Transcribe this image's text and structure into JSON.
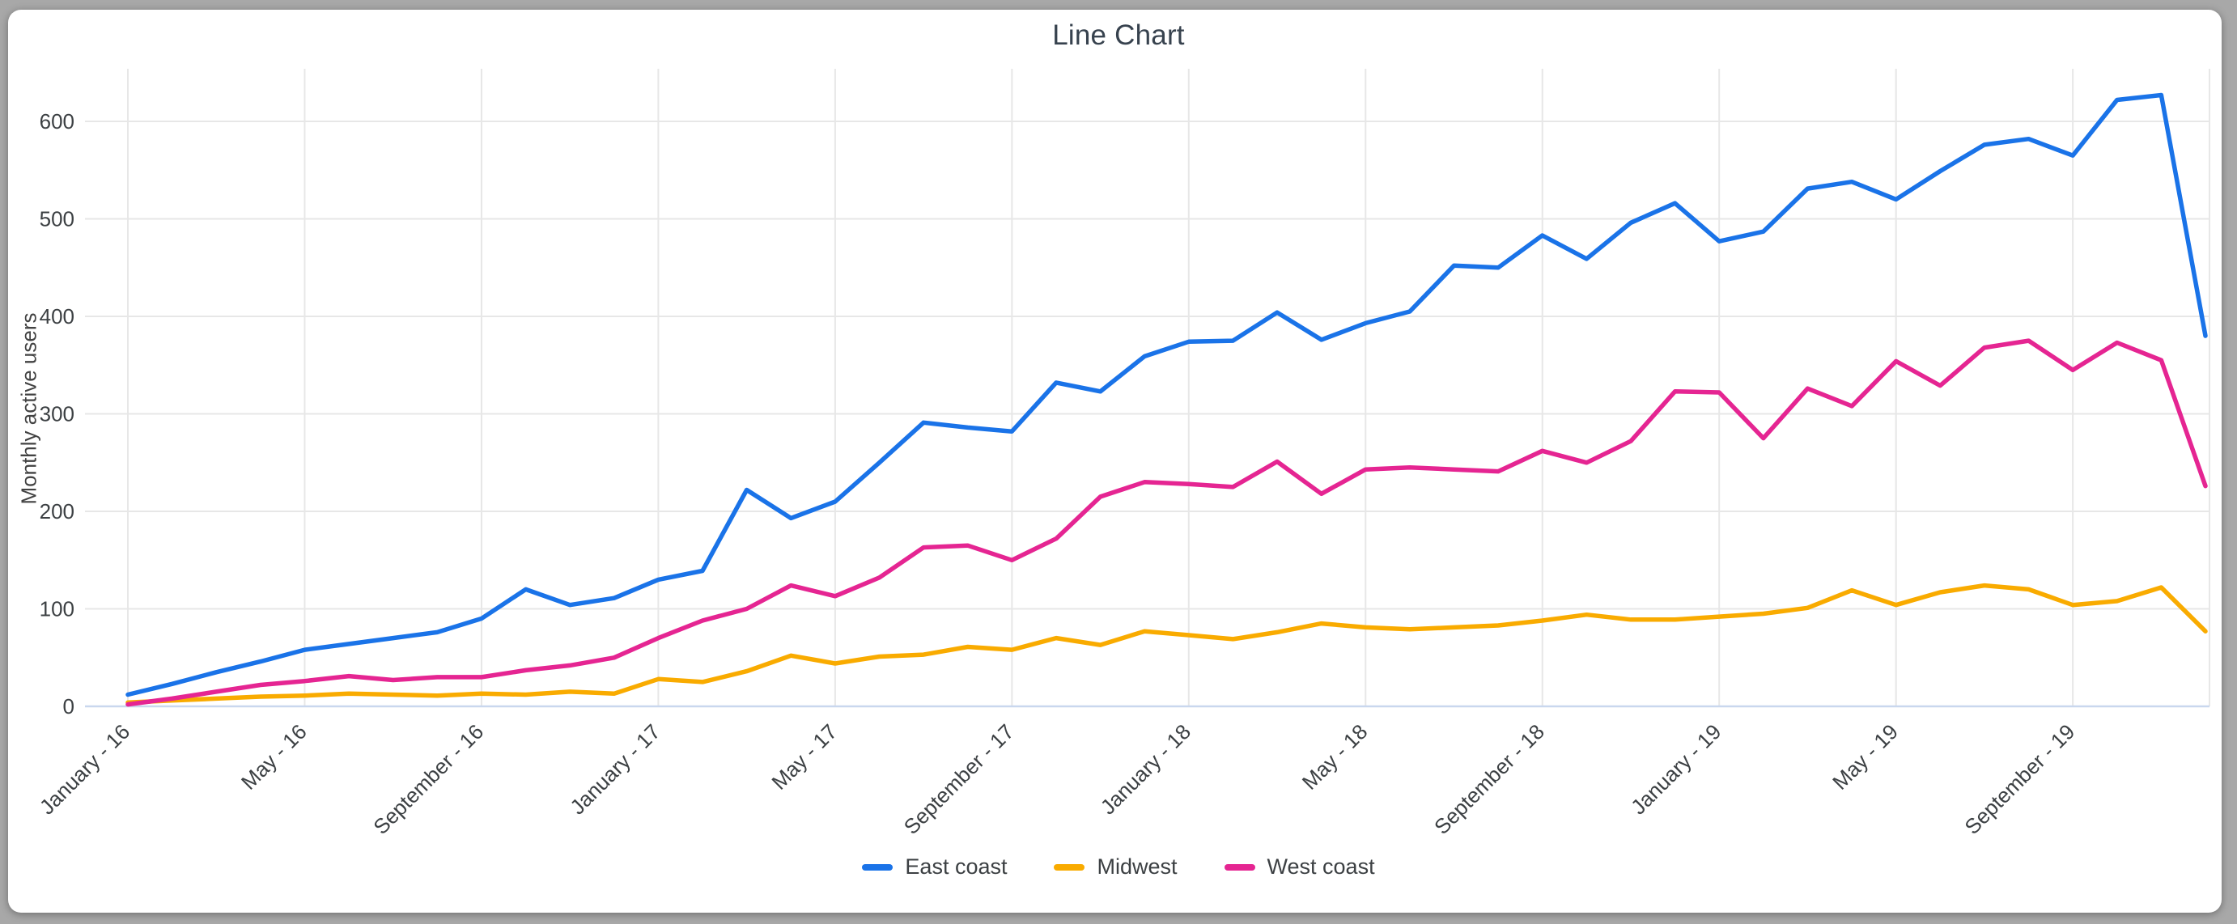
{
  "page": {
    "background_color": "#a8a8a8",
    "card_background_color": "#ffffff"
  },
  "colors": {
    "grid": "#e7e7e7",
    "zero_axis": "#c9d7ee",
    "tick_text": "#3c4043",
    "title_text": "#37424e",
    "axis_title_text": "#424242"
  },
  "chart_data": {
    "type": "line",
    "title": "Line Chart",
    "ylabel": "Monthly active users",
    "xlabel": "",
    "ylim": [
      0,
      650
    ],
    "y_ticks": [
      0,
      100,
      200,
      300,
      400,
      500,
      600
    ],
    "n_points": 48,
    "x_tick_positions": [
      0,
      4,
      8,
      12,
      16,
      20,
      24,
      28,
      32,
      36,
      40,
      44
    ],
    "x_tick_labels": [
      "January - 16",
      "May - 16",
      "September - 16",
      "January - 17",
      "May - 17",
      "September - 17",
      "January - 18",
      "May - 18",
      "September - 18",
      "January - 19",
      "May - 19",
      "September - 19"
    ],
    "grid": true,
    "legend_position": "bottom-center",
    "series": [
      {
        "name": "East coast",
        "color": "#1a73e8",
        "values": [
          12,
          23,
          35,
          46,
          58,
          64,
          70,
          76,
          90,
          120,
          104,
          111,
          130,
          139,
          222,
          193,
          210,
          250,
          291,
          286,
          282,
          332,
          323,
          359,
          374,
          375,
          404,
          376,
          393,
          405,
          452,
          450,
          483,
          459,
          496,
          516,
          477,
          487,
          531,
          538,
          520,
          549,
          576,
          582,
          565,
          622,
          627,
          380
        ]
      },
      {
        "name": "Midwest",
        "color": "#f9ab00",
        "values": [
          4,
          6,
          8,
          10,
          11,
          13,
          12,
          11,
          13,
          12,
          15,
          13,
          28,
          25,
          36,
          52,
          44,
          51,
          53,
          61,
          58,
          70,
          63,
          77,
          73,
          69,
          76,
          85,
          81,
          79,
          81,
          83,
          88,
          94,
          89,
          89,
          92,
          95,
          101,
          119,
          104,
          117,
          124,
          120,
          104,
          108,
          122,
          77
        ]
      },
      {
        "name": "West coast",
        "color": "#e52592",
        "values": [
          2,
          8,
          15,
          22,
          26,
          31,
          27,
          30,
          30,
          37,
          42,
          50,
          70,
          88,
          100,
          124,
          113,
          132,
          163,
          165,
          150,
          172,
          215,
          230,
          228,
          225,
          251,
          218,
          243,
          245,
          243,
          241,
          262,
          250,
          272,
          323,
          322,
          275,
          326,
          308,
          354,
          329,
          368,
          375,
          345,
          373,
          355,
          226
        ]
      }
    ]
  }
}
